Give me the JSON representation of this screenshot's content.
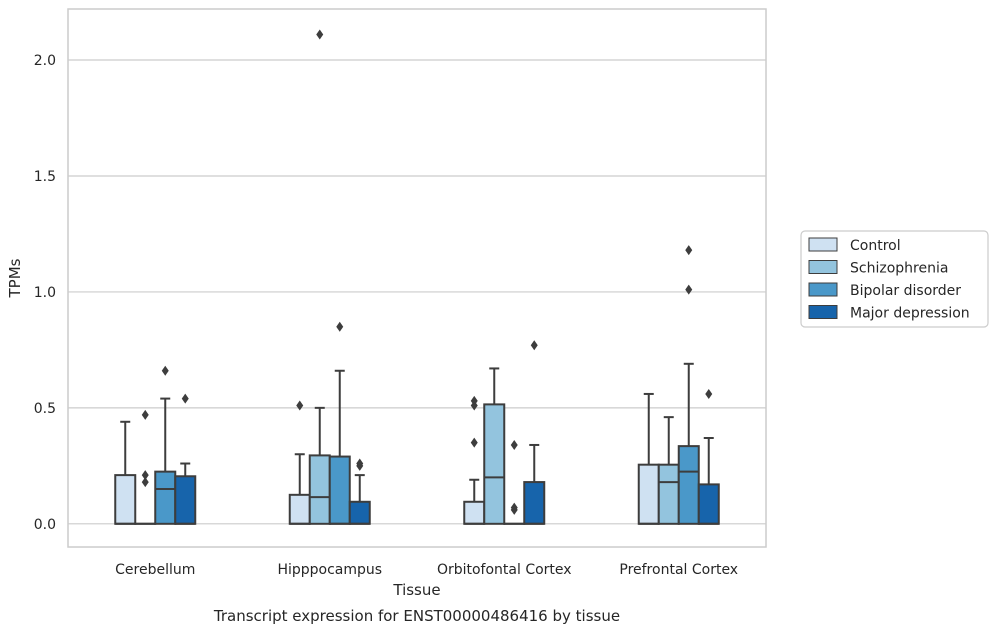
{
  "chart_data": {
    "type": "box",
    "title": "",
    "xlabel": "Tissue",
    "ylabel": "TPMs",
    "caption": "Transcript expression for ENST00000486416 by tissue",
    "ylim": [
      -0.1,
      2.22
    ],
    "yticks": [
      0.0,
      0.5,
      1.0,
      1.5,
      2.0
    ],
    "ytick_labels": [
      "0.0",
      "0.5",
      "1.0",
      "1.5",
      "2.0"
    ],
    "grid": "horizontal",
    "legend_position": "right",
    "categories": [
      "Cerebellum",
      "Hipppocampus",
      "Orbitofontal Cortex",
      "Prefrontal Cortex"
    ],
    "series": [
      {
        "name": "Control",
        "color": "#cfe1f2",
        "boxes": [
          {
            "whislo": 0.0,
            "q1": 0.0,
            "med": 0.0,
            "q3": 0.21,
            "whishi": 0.44,
            "fliers": []
          },
          {
            "whislo": 0.0,
            "q1": 0.0,
            "med": 0.0,
            "q3": 0.125,
            "whishi": 0.3,
            "fliers": [
              0.51
            ]
          },
          {
            "whislo": 0.0,
            "q1": 0.0,
            "med": 0.0,
            "q3": 0.095,
            "whishi": 0.19,
            "fliers": [
              0.35,
              0.51,
              0.53
            ]
          },
          {
            "whislo": 0.0,
            "q1": 0.0,
            "med": 0.0,
            "q3": 0.255,
            "whishi": 0.56,
            "fliers": []
          }
        ]
      },
      {
        "name": "Schizophrenia",
        "color": "#93c4de",
        "boxes": [
          {
            "whislo": 0.0,
            "q1": 0.0,
            "med": 0.0,
            "q3": 0.0,
            "whishi": 0.0,
            "fliers": [
              0.18,
              0.21,
              0.47
            ]
          },
          {
            "whislo": 0.0,
            "q1": 0.0,
            "med": 0.115,
            "q3": 0.295,
            "whishi": 0.5,
            "fliers": [
              2.11
            ]
          },
          {
            "whislo": 0.0,
            "q1": 0.0,
            "med": 0.2,
            "q3": 0.515,
            "whishi": 0.67,
            "fliers": []
          },
          {
            "whislo": 0.0,
            "q1": 0.0,
            "med": 0.18,
            "q3": 0.255,
            "whishi": 0.46,
            "fliers": []
          }
        ]
      },
      {
        "name": "Bipolar disorder",
        "color": "#4a98c9",
        "boxes": [
          {
            "whislo": 0.0,
            "q1": 0.0,
            "med": 0.15,
            "q3": 0.225,
            "whishi": 0.54,
            "fliers": [
              0.66
            ]
          },
          {
            "whislo": 0.0,
            "q1": 0.0,
            "med": 0.0,
            "q3": 0.29,
            "whishi": 0.66,
            "fliers": [
              0.85
            ]
          },
          {
            "whislo": 0.0,
            "q1": 0.0,
            "med": 0.0,
            "q3": 0.0,
            "whishi": 0.0,
            "fliers": [
              0.06,
              0.07,
              0.34
            ]
          },
          {
            "whislo": 0.0,
            "q1": 0.0,
            "med": 0.225,
            "q3": 0.335,
            "whishi": 0.69,
            "fliers": [
              1.01,
              1.18
            ]
          }
        ]
      },
      {
        "name": "Major depression",
        "color": "#1764ab",
        "boxes": [
          {
            "whislo": 0.0,
            "q1": 0.0,
            "med": 0.0,
            "q3": 0.205,
            "whishi": 0.26,
            "fliers": [
              0.54
            ]
          },
          {
            "whislo": 0.0,
            "q1": 0.0,
            "med": 0.0,
            "q3": 0.095,
            "whishi": 0.21,
            "fliers": [
              0.25,
              0.26
            ]
          },
          {
            "whislo": 0.0,
            "q1": 0.0,
            "med": 0.0,
            "q3": 0.18,
            "whishi": 0.34,
            "fliers": [
              0.77
            ]
          },
          {
            "whislo": 0.0,
            "q1": 0.0,
            "med": 0.0,
            "q3": 0.17,
            "whishi": 0.37,
            "fliers": [
              0.56
            ]
          }
        ]
      }
    ],
    "colors": {
      "grid": "#cccccc",
      "frame": "#cccccc",
      "box_edge": "#3d3d3d",
      "legend_edge": "#cccccc"
    }
  }
}
